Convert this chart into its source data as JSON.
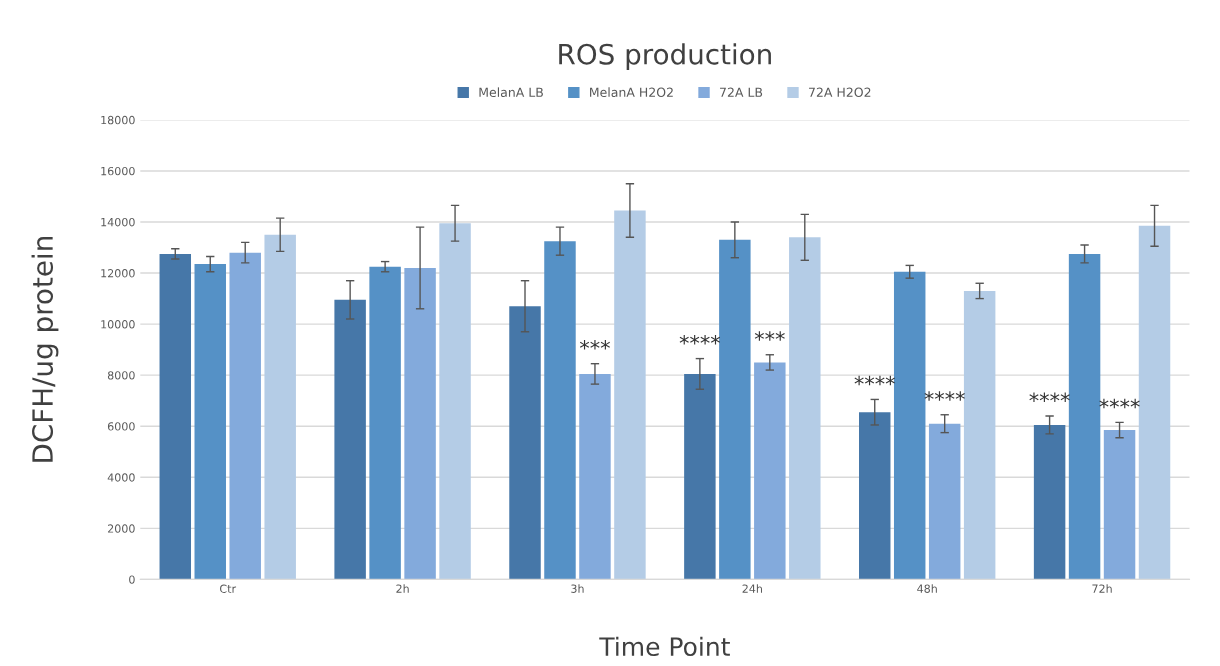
{
  "chart_data": {
    "type": "bar",
    "title": "ROS production",
    "xlabel": "Time Point",
    "ylabel": "DCFH/ug protein",
    "categories": [
      "Ctr",
      "2h",
      "3h",
      "24h",
      "48h",
      "72h"
    ],
    "series": [
      {
        "name": "MelanA LB",
        "color": "#4677a8",
        "values": [
          12750,
          10950,
          10700,
          8050,
          6550,
          6050
        ],
        "errors": [
          200,
          750,
          1000,
          600,
          500,
          350
        ]
      },
      {
        "name": "MelanA H2O2",
        "color": "#5591c6",
        "values": [
          12350,
          12250,
          13250,
          13300,
          12050,
          12750
        ],
        "errors": [
          300,
          200,
          550,
          700,
          250,
          350
        ]
      },
      {
        "name": "72A LB",
        "color": "#83aadc",
        "values": [
          12800,
          12200,
          8050,
          8500,
          6100,
          5850
        ],
        "errors": [
          400,
          1600,
          400,
          300,
          350,
          300
        ]
      },
      {
        "name": "72A H2O2",
        "color": "#b4cce6",
        "values": [
          13500,
          13950,
          14450,
          13400,
          11300,
          13850
        ],
        "errors": [
          650,
          700,
          1050,
          900,
          300,
          800
        ]
      }
    ],
    "annotations": [
      {
        "text": "***",
        "x": "3h",
        "y": 8450
      },
      {
        "text": "****",
        "x": "24h",
        "y": 8650
      },
      {
        "text": "***",
        "x": "24h",
        "y": 8800
      },
      {
        "text": "****",
        "x": "48h",
        "y": 7050
      },
      {
        "text": "****",
        "x": "48h",
        "y": 6450
      },
      {
        "text": "****",
        "x": "72h",
        "y": 6400
      },
      {
        "text": "****",
        "x": "72h",
        "y": 6150
      }
    ],
    "ylim": [
      0,
      18000
    ],
    "yticks": [
      0,
      2000,
      4000,
      6000,
      8000,
      10000,
      12000,
      14000,
      16000,
      18000
    ],
    "grid": "y",
    "legend": "top"
  }
}
